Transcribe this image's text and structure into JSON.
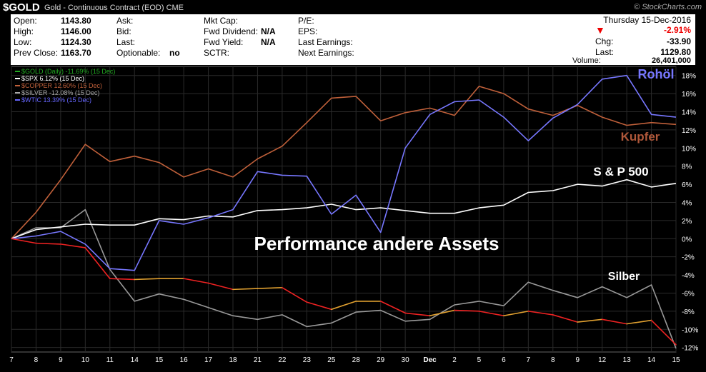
{
  "header": {
    "symbol": "$GOLD",
    "description": "Gold - Continuous Contract (EOD)",
    "exchange": "CME",
    "brand": "© StockCharts.com"
  },
  "quote": {
    "open_label": "Open:",
    "open": "1143.80",
    "high_label": "High:",
    "high": "1146.00",
    "low_label": "Low:",
    "low": "1124.30",
    "prev_label": "Prev Close:",
    "prev": "1163.70",
    "ask_label": "Ask:",
    "bid_label": "Bid:",
    "last_label": "Last:",
    "optionable_label": "Optionable:",
    "optionable": "no",
    "mktcap_label": "Mkt Cap:",
    "fwddiv_label": "Fwd Dividend:",
    "fwddiv": "N/A",
    "fwdyield_label": "Fwd Yield:",
    "fwdyield": "N/A",
    "sctr_label": "SCTR:",
    "pe_label": "P/E:",
    "eps_label": "EPS:",
    "lastearn_label": "Last Earnings:",
    "nextearn_label": "Next Earnings:",
    "date": "Thursday  15-Dec-2016",
    "pct_change": "-2.91%",
    "chg_label": "Chg:",
    "chg": "-33.90",
    "last2_label": "Last:",
    "last2": "1129.80",
    "volume_label": "Volume:",
    "volume": "26,401,000",
    "colors": {
      "negative": "#e00000"
    }
  },
  "legend": [
    {
      "text": "$GOLD (Daily) -11.69% (15 Dec)",
      "color": "#22aa22"
    },
    {
      "text": "$SPX 6.12% (15 Dec)",
      "color": "#ffffff"
    },
    {
      "text": "$COPPER 12.60% (15 Dec)",
      "color": "#c0603a"
    },
    {
      "text": "$SILVER -12.08% (15 Dec)",
      "color": "#aaaaaa"
    },
    {
      "text": "$WTIC 13.39% (15 Dec)",
      "color": "#6666ff"
    }
  ],
  "annotations": {
    "main": "Performance andere Assets",
    "oil": "Rohöl",
    "copper": "Kupfer",
    "spx": "S & P 500",
    "silver": "Silber"
  },
  "chart_data": {
    "type": "line",
    "x": [
      "7",
      "8",
      "9",
      "10",
      "11",
      "14",
      "15",
      "16",
      "17",
      "18",
      "21",
      "22",
      "23",
      "25",
      "28",
      "29",
      "30",
      "Dec",
      "2",
      "5",
      "6",
      "7",
      "8",
      "9",
      "12",
      "13",
      "14",
      "15"
    ],
    "ylim": [
      -12.5,
      19
    ],
    "yticks": [
      -12,
      -10,
      -8,
      -6,
      -4,
      -2,
      0,
      2,
      4,
      6,
      8,
      10,
      12,
      14,
      16,
      18
    ],
    "ytick_labels": [
      "-12%",
      "-10%",
      "-8%",
      "-6%",
      "-4%",
      "-2%",
      "0%",
      "2%",
      "4%",
      "6%",
      "8%",
      "10%",
      "12%",
      "14%",
      "16%",
      "18%"
    ],
    "series": [
      {
        "name": "$GOLD",
        "color": "#ee2222",
        "alt_color": "#e0a030",
        "values": [
          0,
          -0.5,
          -0.6,
          -1.0,
          -4.4,
          -4.5,
          -4.4,
          -4.4,
          -4.9,
          -5.6,
          -5.5,
          -5.4,
          -7.0,
          -7.8,
          -6.9,
          -6.9,
          -8.2,
          -8.5,
          -7.9,
          -8.0,
          -8.5,
          -8.0,
          -8.4,
          -9.2,
          -8.9,
          -9.4,
          -9.0,
          -11.7
        ]
      },
      {
        "name": "$SPX",
        "color": "#ffffff",
        "values": [
          0,
          1.0,
          1.3,
          1.6,
          1.5,
          1.5,
          2.2,
          2.1,
          2.5,
          2.4,
          3.1,
          3.2,
          3.4,
          3.8,
          3.2,
          3.4,
          3.1,
          2.8,
          2.8,
          3.4,
          3.7,
          5.1,
          5.3,
          6.0,
          5.8,
          6.5,
          5.7,
          6.1
        ]
      },
      {
        "name": "$COPPER",
        "color": "#c0603a",
        "values": [
          0,
          2.9,
          6.5,
          10.4,
          8.5,
          9.1,
          8.4,
          6.8,
          7.7,
          6.8,
          8.8,
          10.2,
          12.8,
          15.5,
          15.7,
          13.0,
          13.9,
          14.4,
          13.6,
          16.8,
          16.0,
          14.3,
          13.6,
          14.7,
          13.4,
          12.5,
          12.8,
          12.6
        ]
      },
      {
        "name": "$SILVER",
        "color": "#999999",
        "values": [
          0,
          1.2,
          1.2,
          3.2,
          -3.4,
          -6.9,
          -6.1,
          -6.7,
          -7.6,
          -8.5,
          -8.9,
          -8.4,
          -9.7,
          -9.3,
          -8.1,
          -7.9,
          -9.1,
          -8.9,
          -7.3,
          -6.9,
          -7.4,
          -4.8,
          -5.7,
          -6.5,
          -5.3,
          -6.5,
          -5.1,
          -12.1
        ]
      },
      {
        "name": "$WTIC",
        "color": "#7777ff",
        "values": [
          0,
          0.3,
          0.8,
          -0.6,
          -3.3,
          -3.5,
          2.0,
          1.6,
          2.3,
          3.2,
          7.4,
          7.0,
          6.9,
          2.7,
          4.8,
          0.7,
          10.0,
          13.7,
          15.1,
          15.3,
          13.4,
          10.8,
          13.3,
          14.8,
          17.6,
          18.0,
          13.7,
          13.4
        ]
      }
    ]
  }
}
